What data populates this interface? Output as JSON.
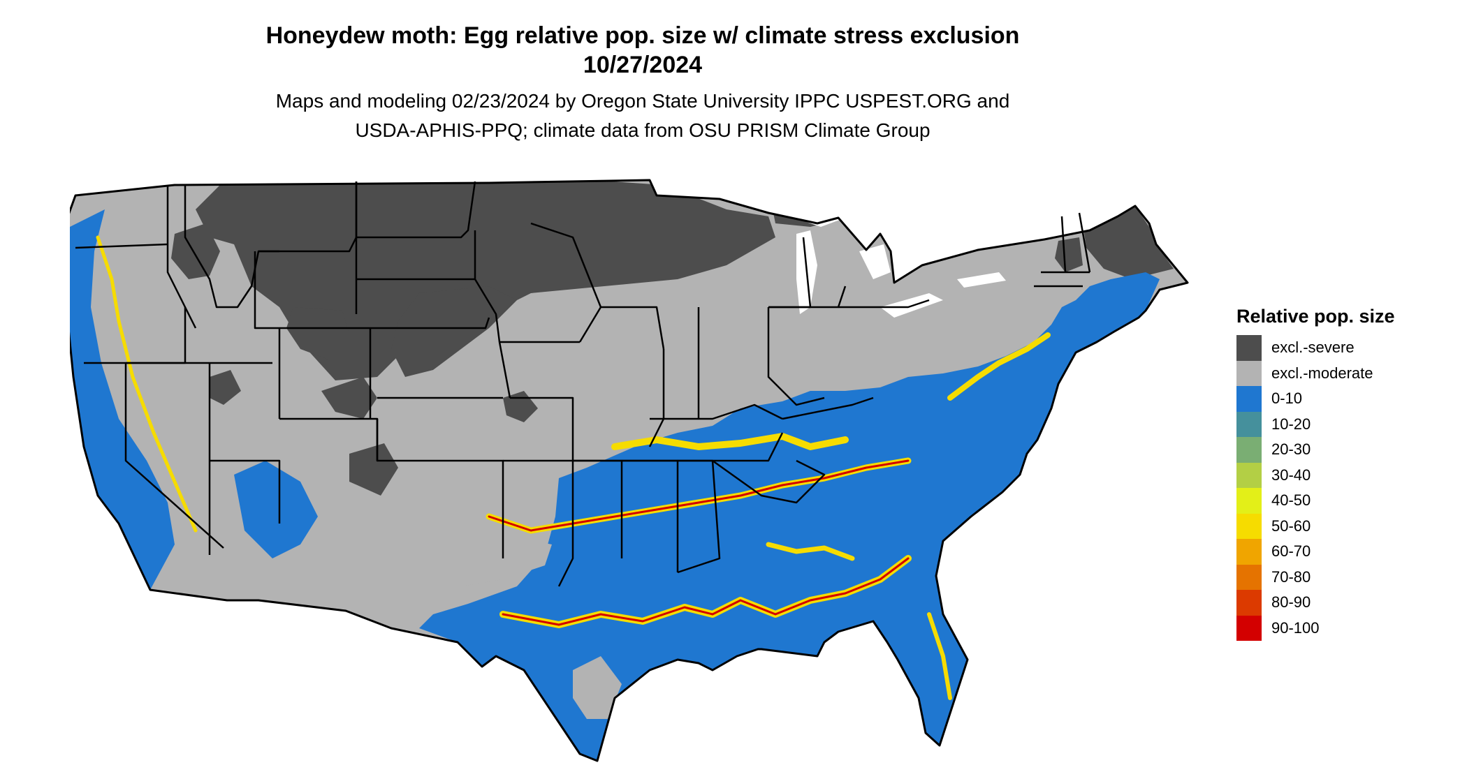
{
  "title": {
    "line1": "Honeydew moth: Egg relative pop. size w/ climate stress exclusion",
    "line2": "10/27/2024"
  },
  "subtitle": {
    "line1": "Maps and modeling 02/23/2024 by Oregon State University IPPC USPEST.ORG and",
    "line2": "USDA-APHIS-PPQ; climate data from OSU PRISM Climate Group"
  },
  "legend": {
    "title": "Relative pop. size",
    "items": [
      {
        "label": "excl.-severe",
        "color": "#4d4d4d"
      },
      {
        "label": "excl.-moderate",
        "color": "#b3b3b3"
      },
      {
        "label": "0-10",
        "color": "#1f77d0"
      },
      {
        "label": "10-20",
        "color": "#45909c"
      },
      {
        "label": "20-30",
        "color": "#7aae73"
      },
      {
        "label": "30-40",
        "color": "#b3cf45"
      },
      {
        "label": "40-50",
        "color": "#e3ef18"
      },
      {
        "label": "50-60",
        "color": "#f6dc00"
      },
      {
        "label": "60-70",
        "color": "#f0a500"
      },
      {
        "label": "70-80",
        "color": "#e57300"
      },
      {
        "label": "80-90",
        "color": "#dc3a00"
      },
      {
        "label": "90-100",
        "color": "#d30000"
      }
    ]
  },
  "map": {
    "region": "Contiguous United States",
    "colors": {
      "excl_severe": "#4d4d4d",
      "excl_moderate": "#b3b3b3",
      "low": "#1f77d0",
      "mid": "#f6dc00",
      "high": "#d30000",
      "border": "#000000",
      "water": "#ffffff"
    }
  }
}
